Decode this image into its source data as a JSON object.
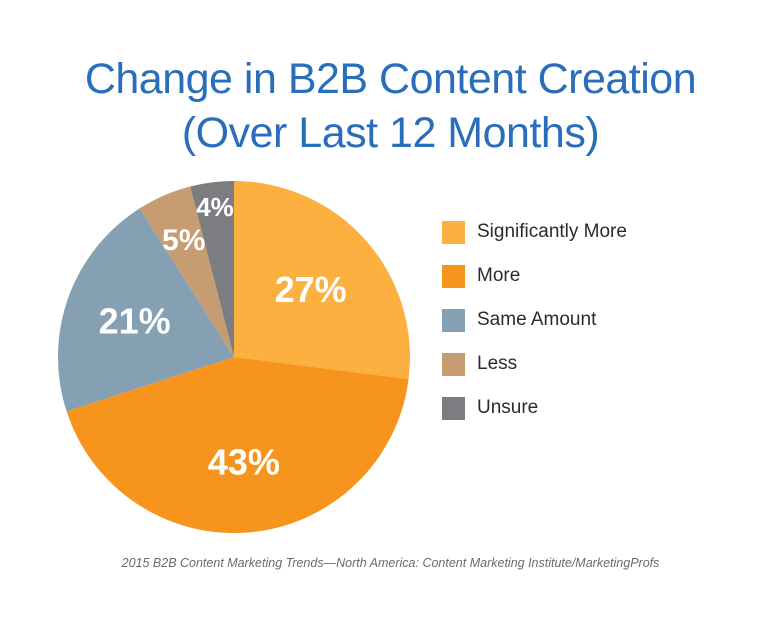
{
  "chart_data": {
    "type": "pie",
    "title_lines": [
      "Change in B2B Content Creation",
      "(Over Last 12 Months)"
    ],
    "categories": [
      "Significantly More",
      "More",
      "Same Amount",
      "Less",
      "Unsure"
    ],
    "values": [
      27,
      43,
      21,
      5,
      4
    ],
    "value_labels": [
      "27%",
      "43%",
      "21%",
      "5%",
      "4%"
    ],
    "colors": [
      "#fbb03f",
      "#f7941d",
      "#85a0b2",
      "#c69c72",
      "#7b7d80"
    ],
    "start_angle_deg": 0,
    "direction": "clockwise",
    "legend_position": "right"
  },
  "source": "2015 B2B Content Marketing Trends—North America: Content Marketing Institute/MarketingProfs"
}
